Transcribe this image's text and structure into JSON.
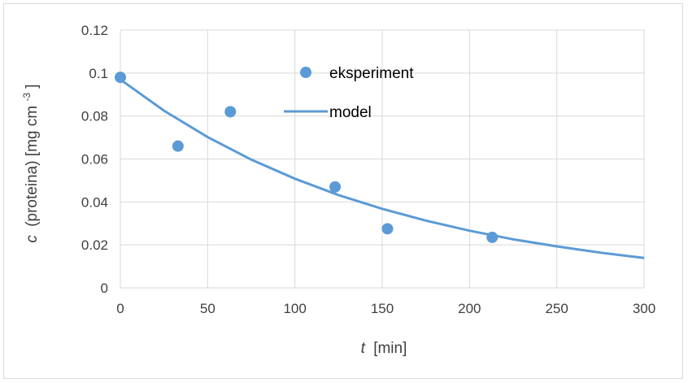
{
  "chart_data": {
    "type": "scatter",
    "title": "",
    "xlabel": {
      "symbol": "t",
      "unit": "[min]"
    },
    "ylabel": {
      "symbol": "c",
      "text": "(proteina) [mg cm",
      "sup": "-3",
      "close": "]"
    },
    "xlim": [
      0,
      300
    ],
    "ylim": [
      0,
      0.12
    ],
    "x_ticks": [
      0,
      50,
      100,
      150,
      200,
      250,
      300
    ],
    "y_ticks": [
      0,
      0.02,
      0.04,
      0.06,
      0.08,
      0.1,
      0.12
    ],
    "grid": true,
    "legend_position": "top-center",
    "series": [
      {
        "name": "eksperiment",
        "kind": "points",
        "color": "#5b9bd5",
        "x": [
          0,
          33,
          63,
          123,
          153,
          213
        ],
        "y": [
          0.098,
          0.066,
          0.082,
          0.047,
          0.0275,
          0.0235
        ]
      },
      {
        "name": "model",
        "kind": "line",
        "color": "#5b9bd5",
        "x": [
          0,
          25,
          50,
          75,
          100,
          125,
          150,
          175,
          200,
          225,
          250,
          275,
          300
        ],
        "y": [
          0.097,
          0.0825,
          0.0702,
          0.0597,
          0.0508,
          0.0432,
          0.0368,
          0.0313,
          0.0266,
          0.0226,
          0.0193,
          0.0164,
          0.0139
        ]
      }
    ]
  }
}
